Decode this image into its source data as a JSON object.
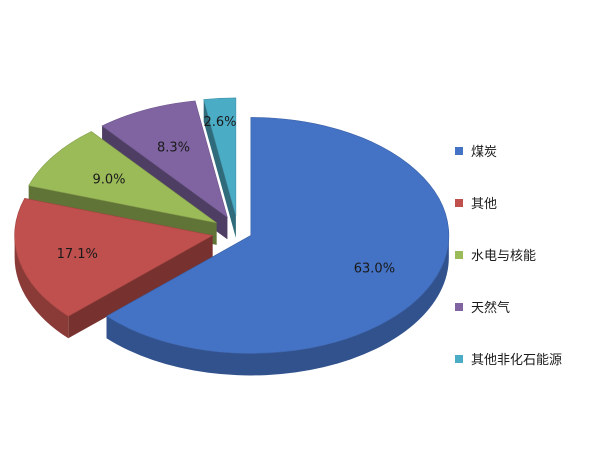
{
  "chart_data": {
    "type": "pie",
    "three_d": true,
    "exploded": true,
    "legend_position": "right",
    "slices": [
      {
        "name": "煤炭",
        "value": 63.0,
        "label": "63.0%",
        "color": "#4472C4"
      },
      {
        "name": "其他",
        "value": 17.1,
        "label": "17.1%",
        "color": "#C0504D"
      },
      {
        "name": "水电与核能",
        "value": 9.0,
        "label": "9.0%",
        "color": "#9BBB59"
      },
      {
        "name": "天然气",
        "value": 8.3,
        "label": "8.3%",
        "color": "#8064A2"
      },
      {
        "name": "其他非化石能源",
        "value": 2.6,
        "label": "2.6%",
        "color": "#4BACC6"
      }
    ]
  }
}
